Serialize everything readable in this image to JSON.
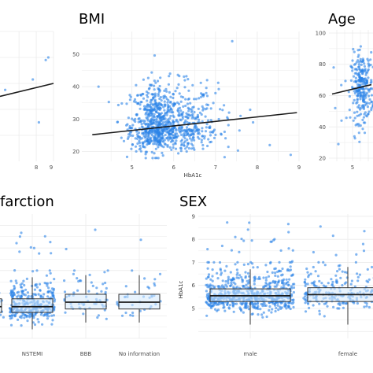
{
  "chart_data": [
    {
      "id": "left-scatter",
      "type": "scatter",
      "title": "",
      "xlabel": "",
      "ylabel": "",
      "xlim": [
        5.9,
        9.0
      ],
      "x_ticks": [
        "8",
        "9"
      ],
      "trend": [
        [
          5.9,
          0.5
        ],
        [
          9.0,
          0.6
        ]
      ],
      "points": [
        [
          8.55,
          0.78
        ],
        [
          8.7,
          0.8
        ],
        [
          8.15,
          0.3
        ],
        [
          7.8,
          0.63
        ],
        [
          6.2,
          0.55
        ]
      ]
    },
    {
      "id": "bmi",
      "type": "scatter",
      "title": "BMI",
      "xlabel": "HbA1c",
      "ylabel": "",
      "xlim": [
        3.8,
        9.0
      ],
      "ylim": [
        17,
        57
      ],
      "x_ticks": [
        "5",
        "6",
        "7",
        "8",
        "9"
      ],
      "y_ticks": [
        "20",
        "30",
        "40",
        "50"
      ],
      "trend": [
        [
          4.05,
          25.2
        ],
        [
          8.95,
          32.0
        ]
      ],
      "cluster": {
        "x_center": 5.7,
        "x_sd": 0.45,
        "y_center": 27.5,
        "y_sd": 4.5,
        "n": 900
      },
      "outliers": [
        [
          7.4,
          54
        ],
        [
          8.3,
          22
        ],
        [
          8.8,
          19
        ],
        [
          7.0,
          38
        ],
        [
          6.8,
          42
        ],
        [
          4.2,
          40
        ],
        [
          7.9,
          29
        ],
        [
          6.9,
          23
        ],
        [
          7.6,
          31
        ]
      ]
    },
    {
      "id": "age",
      "type": "scatter",
      "title": "Age",
      "xlabel": "",
      "ylabel": "",
      "xlim": [
        3.5,
        6.3
      ],
      "ylim": [
        18,
        102
      ],
      "x_ticks": [
        "5"
      ],
      "y_ticks": [
        "20",
        "40",
        "60",
        "80",
        "100"
      ],
      "trend": [
        [
          3.7,
          61
        ],
        [
          6.2,
          67
        ]
      ],
      "cluster": {
        "x_center": 5.6,
        "x_sd": 0.35,
        "y_center": 65,
        "y_sd": 11,
        "n": 260
      }
    },
    {
      "id": "infarction",
      "type": "box",
      "title": "farction",
      "xlabel": "",
      "ylabel": "",
      "ylim": [
        4.0,
        9.5
      ],
      "categories": [
        "NSTEMI",
        "BBB",
        "No information"
      ],
      "boxes": [
        {
          "q1": 5.15,
          "median": 5.4,
          "q3": 5.75,
          "lo": 4.4,
          "hi": 6.7,
          "n": 320
        },
        {
          "q1": 5.3,
          "median": 5.6,
          "q3": 5.95,
          "lo": 4.7,
          "hi": 6.8,
          "n": 60
        },
        {
          "q1": 5.3,
          "median": 5.6,
          "q3": 5.95,
          "lo": 4.7,
          "hi": 6.8,
          "n": 35
        }
      ],
      "partial_box": {
        "q1": 5.15,
        "median": 5.4,
        "q3": 5.75,
        "lo": 4.4,
        "hi": 6.7,
        "n": 60
      }
    },
    {
      "id": "sex",
      "type": "box",
      "title": "SEX",
      "xlabel": "",
      "ylabel": "HbA1c",
      "ylim": [
        3.7,
        9.1
      ],
      "y_ticks": [
        "5",
        "6",
        "7",
        "8",
        "9"
      ],
      "categories": [
        "male",
        "female"
      ],
      "boxes": [
        {
          "q1": 5.3,
          "median": 5.55,
          "q3": 5.85,
          "lo": 4.3,
          "hi": 6.7,
          "n": 650
        },
        {
          "q1": 5.3,
          "median": 5.6,
          "q3": 5.9,
          "lo": 4.3,
          "hi": 6.8,
          "n": 260
        }
      ]
    }
  ],
  "colors": {
    "point": "#2b83e8",
    "line": "#1a1a1a",
    "box_fill": "#d6e9fb",
    "grid": "#ebebeb"
  }
}
